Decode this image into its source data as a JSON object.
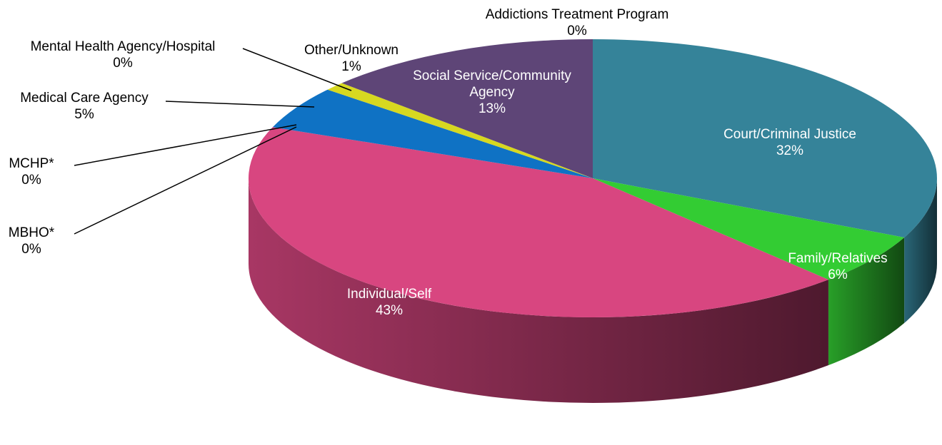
{
  "chart_data": {
    "type": "pie",
    "style": "3d",
    "title": "",
    "slices": [
      {
        "label": "Addictions Treatment Program",
        "value_label": "0%",
        "value": 0,
        "color": "#1f5fa8"
      },
      {
        "label": "Court/Criminal Justice",
        "value_label": "32%",
        "value": 32,
        "color": "#358399"
      },
      {
        "label": "Family/Relatives",
        "value_label": "6%",
        "value": 6,
        "color": "#33cc33"
      },
      {
        "label": "Individual/Self",
        "value_label": "43%",
        "value": 43,
        "color": "#d84680"
      },
      {
        "label": "MBHO*",
        "value_label": "0%",
        "value": 0,
        "color": "#3d4aa3"
      },
      {
        "label": "MCHP*",
        "value_label": "0%",
        "value": 0,
        "color": "#7a3ea0"
      },
      {
        "label": "Medical Care Agency",
        "value_label": "5%",
        "value": 5,
        "color": "#0f72c4"
      },
      {
        "label": "Mental Health Agency/Hospital",
        "value_label": "0%",
        "value": 0,
        "color": "#2d6e9a"
      },
      {
        "label": "Other/Unknown",
        "value_label": "1%",
        "value": 1,
        "color": "#d7d820"
      },
      {
        "label": "Social Service/Community Agency",
        "value_label": "13%",
        "value": 13,
        "color": "#5e4577"
      }
    ]
  }
}
